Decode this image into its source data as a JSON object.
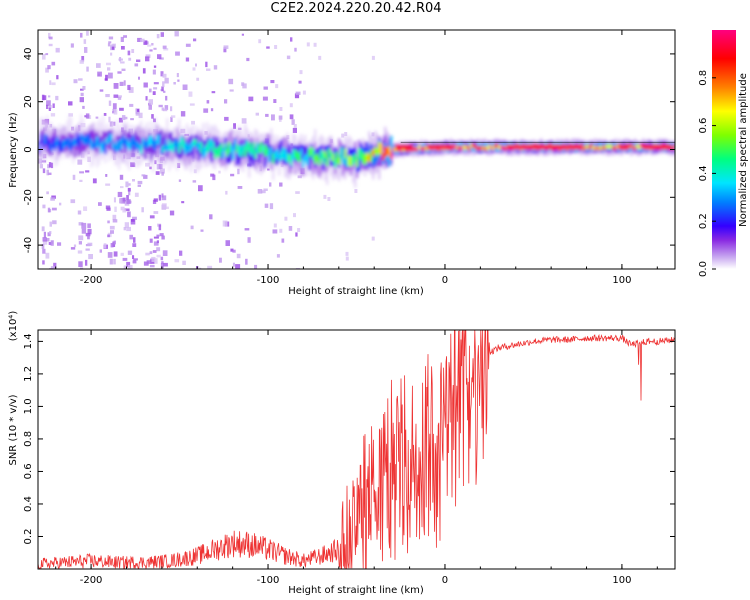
{
  "title": "C2E2.2024.220.20.42.R04",
  "chart_data": [
    {
      "type": "heatmap",
      "xlabel": "Height of straight line (km)",
      "ylabel": "Frequency (Hz)",
      "xlim": [
        -230,
        130
      ],
      "ylim": [
        -50,
        50
      ],
      "x_ticks": [
        -200,
        -100,
        0,
        100
      ],
      "y_ticks": [
        -40,
        -20,
        0,
        20,
        40
      ],
      "colorbar": {
        "label": "Normalized spectral amplitude",
        "range": [
          0,
          1
        ],
        "ticks": [
          "0.0",
          "0.2",
          "0.4",
          "0.6",
          "0.8"
        ],
        "colormap": [
          "#ffffff",
          "#c8a8f0",
          "#8a2be2",
          "#3300ff",
          "#0080ff",
          "#00e5ff",
          "#00ff7f",
          "#7fff00",
          "#ffff00",
          "#ff8000",
          "#ff0000",
          "#ff007f"
        ]
      },
      "ridge": [
        {
          "x": -230,
          "f": 3,
          "amp": 0.35
        },
        {
          "x": -200,
          "f": 3,
          "amp": 0.4
        },
        {
          "x": -160,
          "f": 2,
          "amp": 0.45
        },
        {
          "x": -120,
          "f": 0,
          "amp": 0.55
        },
        {
          "x": -80,
          "f": -3,
          "amp": 0.55
        },
        {
          "x": -50,
          "f": -4,
          "amp": 0.65
        },
        {
          "x": -30,
          "f": 0,
          "amp": 0.95
        },
        {
          "x": 0,
          "f": 1,
          "amp": 0.95
        },
        {
          "x": 50,
          "f": 1,
          "amp": 0.95
        },
        {
          "x": 90,
          "f": 1,
          "amp": 0.9
        },
        {
          "x": 130,
          "f": 1,
          "amp": 0.9
        }
      ]
    },
    {
      "type": "line",
      "xlabel": "Height of straight line (km)",
      "ylabel": "SNR (10 * v/v)",
      "y_multiplier": "(x10⁴)",
      "xlim": [
        -230,
        130
      ],
      "ylim": [
        0,
        1.47
      ],
      "x_ticks": [
        -200,
        -100,
        0,
        100
      ],
      "y_ticks": [
        0.2,
        0.4,
        0.6,
        0.8,
        1.0,
        1.2,
        1.4
      ],
      "line_color": "#ee3333",
      "series": [
        {
          "x": [
            -230,
            -215,
            -200,
            -185,
            -170,
            -155,
            -140,
            -130,
            -120,
            -110,
            -100,
            -90,
            -80,
            -70,
            -60,
            -50,
            -45,
            -40,
            -35,
            -30,
            -25,
            -20,
            -15,
            -10,
            -5,
            0,
            5,
            10,
            15,
            20,
            25,
            30,
            40,
            50,
            60,
            70,
            80,
            90,
            100,
            105,
            110,
            115,
            120,
            130
          ],
          "values": [
            0.03,
            0.04,
            0.05,
            0.04,
            0.04,
            0.05,
            0.08,
            0.12,
            0.16,
            0.15,
            0.12,
            0.08,
            0.05,
            0.08,
            0.12,
            0.22,
            0.3,
            0.4,
            0.5,
            0.55,
            0.62,
            0.55,
            0.65,
            0.7,
            0.72,
            0.75,
            0.95,
            1.1,
            1.2,
            1.28,
            1.33,
            1.36,
            1.38,
            1.4,
            1.41,
            1.41,
            1.42,
            1.42,
            1.42,
            1.38,
            1.39,
            1.4,
            1.4,
            1.41
          ]
        }
      ]
    }
  ]
}
